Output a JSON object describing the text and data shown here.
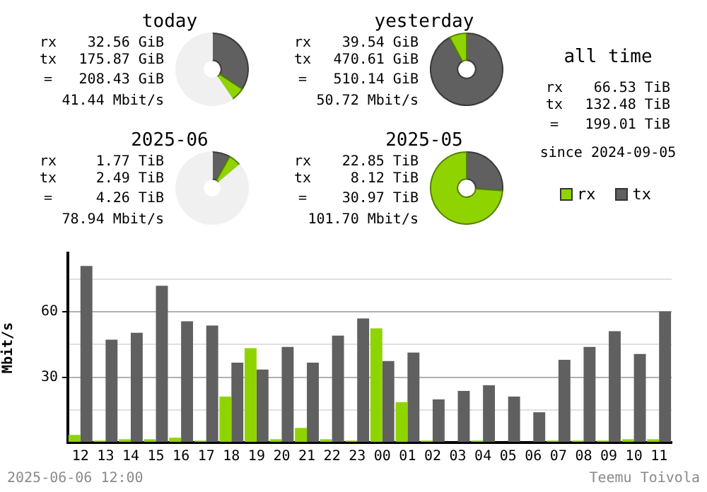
{
  "chart_data": [
    {
      "type": "donut",
      "title": "today",
      "categories": [
        null,
        null,
        null
      ],
      "values": [
        34.2,
        6.3,
        59.5
      ],
      "colors": [
        "#606060",
        "#8fd400",
        "#f0f0f0"
      ],
      "annotations": [
        "rx 32.56 GiB",
        "tx 175.87 GiB",
        "= 208.43 GiB",
        "41.44 Mbit/s"
      ]
    },
    {
      "type": "donut",
      "title": "yesterday",
      "categories": [
        null,
        null
      ],
      "values": [
        92.2,
        7.8
      ],
      "colors": [
        "#606060",
        "#8fd400"
      ],
      "annotations": [
        "rx 39.54 GiB",
        "tx 470.61 GiB",
        "= 510.14 GiB",
        "50.72 Mbit/s"
      ]
    },
    {
      "type": "other",
      "title": "all time",
      "annotations": [
        "rx 66.53 TiB",
        "tx 132.48 TiB",
        "= 199.01 TiB",
        "since 2024-09-05"
      ]
    },
    {
      "type": "donut",
      "title": "2025-06",
      "categories": [
        null,
        null,
        null
      ],
      "values": [
        8.1,
        5.8,
        86.1
      ],
      "colors": [
        "#606060",
        "#8fd400",
        "#f0f0f0"
      ],
      "annotations": [
        "rx 1.77 TiB",
        "tx 2.49 TiB",
        "= 4.26 TiB",
        "78.94 Mbit/s"
      ]
    },
    {
      "type": "donut",
      "title": "2025-05",
      "categories": [
        null,
        null
      ],
      "values": [
        26.2,
        73.8
      ],
      "colors": [
        "#606060",
        "#8fd400"
      ],
      "annotations": [
        "rx 22.85 TiB",
        "tx 8.12 TiB",
        "= 30.97 TiB",
        "101.70 Mbit/s"
      ]
    },
    {
      "type": "bar",
      "ylabel": "Mbit/s",
      "categories": [
        "12",
        "13",
        "14",
        "15",
        "16",
        "17",
        "18",
        "19",
        "20",
        "21",
        "22",
        "23",
        "00",
        "01",
        "02",
        "03",
        "04",
        "05",
        "06",
        "07",
        "08",
        "09",
        "10",
        "11"
      ],
      "series": [
        {
          "name": "rx",
          "color": "#8fd400",
          "values": [
            3.5,
            0.9,
            1.5,
            1.5,
            2.2,
            0.9,
            21.1,
            43.3,
            1.5,
            6.7,
            1.5,
            0.9,
            52.4,
            18.5,
            0.9,
            0,
            0.9,
            0,
            0,
            0.9,
            0.9,
            0.9,
            1.5,
            1.5
          ]
        },
        {
          "name": "tx",
          "color": "#606060",
          "values": [
            81.1,
            47.2,
            50.4,
            72,
            55.7,
            53.7,
            36.7,
            33.5,
            43.9,
            36.7,
            49.1,
            57,
            37.4,
            41.3,
            19.8,
            23.7,
            26.3,
            21.1,
            13.9,
            38,
            43.9,
            51.1,
            40.7,
            60.2
          ]
        }
      ],
      "ylim": [
        0,
        87
      ],
      "yticks": [
        {
          "value": 0,
          "label": null
        },
        {
          "value": 15,
          "label": null
        },
        30,
        {
          "value": 45,
          "label": null
        },
        60,
        {
          "value": 75,
          "label": null
        }
      ],
      "grid": "y",
      "legend": "top right",
      "annotations": [
        "2025-06-06 12:00",
        "Teemu Toivola"
      ]
    }
  ]
}
